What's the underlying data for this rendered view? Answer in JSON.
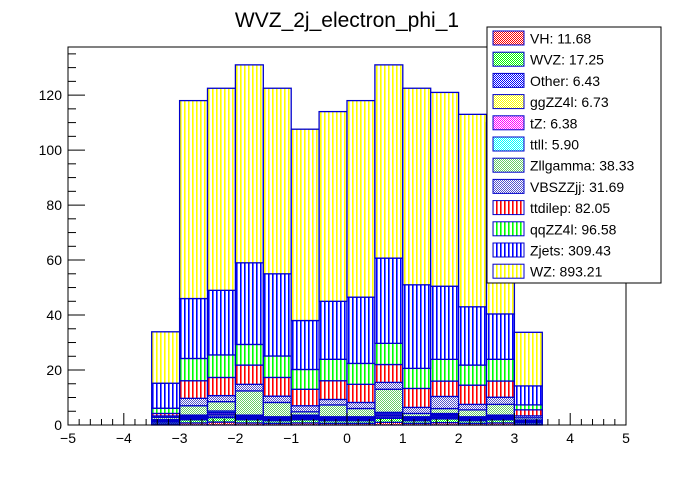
{
  "chart_data": {
    "type": "bar",
    "stacked": true,
    "title": "WVZ_2j_electron_phi_1",
    "xlabel": "",
    "ylabel": "",
    "xlim": [
      -5,
      5
    ],
    "ylim": [
      0,
      137.5
    ],
    "xticks": [
      "-5",
      "-4",
      "-3",
      "-2",
      "-1",
      "0",
      "1",
      "2",
      "3",
      "4",
      "5"
    ],
    "xtick_values": [
      -5,
      -4,
      -3,
      -2,
      -1,
      0,
      1,
      2,
      3,
      4,
      5
    ],
    "yticks": [
      "0",
      "20",
      "40",
      "60",
      "80",
      "100",
      "120"
    ],
    "ytick_values": [
      0,
      20,
      40,
      60,
      80,
      100,
      120
    ],
    "bin_edges": [
      -3.5,
      -3,
      -2.5,
      -2,
      -1.5,
      -1,
      -0.5,
      0,
      0.5,
      1,
      1.5,
      2,
      2.5,
      3,
      3.5
    ],
    "legend_position": "top-right",
    "series": [
      {
        "name": "VH",
        "legend": "VH: 11.68",
        "color": "#ff0000",
        "pattern": "checker",
        "values": [
          0.42,
          0.76,
          1.07,
          0.76,
          0.63,
          0.76,
          0.63,
          0.63,
          0.97,
          0.63,
          0.88,
          0.63,
          0.76,
          0.38
        ]
      },
      {
        "name": "WVZ",
        "legend": "WVZ: 17.25",
        "color": "#00ff00",
        "pattern": "checker",
        "values": [
          0.64,
          1.15,
          1.63,
          1.15,
          0.96,
          1.15,
          0.96,
          0.96,
          1.47,
          0.96,
          1.34,
          0.96,
          1.15,
          0.58
        ]
      },
      {
        "name": "Other",
        "legend": "Other: 6.43",
        "color": "#0000ff",
        "pattern": "checker",
        "values": [
          0.24,
          0.43,
          0.61,
          0.43,
          0.36,
          0.43,
          0.36,
          0.36,
          0.55,
          0.36,
          0.5,
          0.36,
          0.43,
          0.22
        ]
      },
      {
        "name": "ggZZ4l",
        "legend": "ggZZ4l: 6.73",
        "color": "#ffff00",
        "pattern": "checker",
        "values": [
          0.24,
          0.43,
          0.61,
          0.43,
          0.36,
          0.43,
          0.36,
          0.36,
          0.55,
          0.36,
          0.5,
          0.36,
          0.43,
          0.22
        ]
      },
      {
        "name": "tZ",
        "legend": "tZ: 6.38",
        "color": "#ff00ff",
        "pattern": "checker",
        "values": [
          0.24,
          0.43,
          0.61,
          0.43,
          0.36,
          0.43,
          0.36,
          0.36,
          0.55,
          0.36,
          0.5,
          0.36,
          0.43,
          0.22
        ]
      },
      {
        "name": "ttll",
        "legend": "ttll: 5.90",
        "color": "#00ffff",
        "pattern": "checker",
        "values": [
          0.22,
          0.4,
          0.56,
          0.4,
          0.33,
          0.4,
          0.33,
          0.33,
          0.51,
          0.33,
          0.46,
          0.33,
          0.4,
          0.2
        ]
      },
      {
        "name": "Zllgamma",
        "legend": "Zllgamma: 38.33",
        "color": "#66cc66",
        "pattern": "checker",
        "values": [
          0.8,
          3.4,
          3.4,
          8.8,
          5.2,
          1.2,
          4.3,
          3.0,
          8.4,
          1.2,
          1.8,
          2.5,
          3.9,
          0.8
        ]
      },
      {
        "name": "VBSZZjj",
        "legend": "VBSZZjj: 31.69",
        "color": "#5555cc",
        "pattern": "checker",
        "values": [
          0.5,
          2.7,
          2.2,
          2.4,
          2.3,
          2.2,
          2.0,
          2.2,
          2.5,
          2.2,
          4.4,
          2.0,
          2.6,
          0.7
        ]
      },
      {
        "name": "ttdilep",
        "legend": "ttdilep: 82.05",
        "color": "#ff0000",
        "pattern": "vertical",
        "values": [
          0.9,
          6.4,
          6.6,
          7.0,
          6.8,
          6.0,
          6.8,
          6.6,
          6.5,
          6.9,
          5.6,
          7.0,
          5.9,
          2.2
        ]
      },
      {
        "name": "qqZZ4l",
        "legend": "qqZZ4l: 96.58",
        "color": "#00ff00",
        "pattern": "vertical",
        "values": [
          1.9,
          8.1,
          8.2,
          7.5,
          7.8,
          7.2,
          7.8,
          7.6,
          7.7,
          7.3,
          7.9,
          7.3,
          7.9,
          1.8
        ]
      },
      {
        "name": "Zjets",
        "legend": "Zjets: 309.43",
        "color": "#0000ff",
        "pattern": "vertical",
        "values": [
          9.1,
          21.8,
          23.5,
          29.7,
          29.9,
          17.8,
          21.1,
          24.1,
          31.0,
          30.4,
          26.6,
          21.2,
          16.5,
          6.9
        ]
      },
      {
        "name": "WZ",
        "legend": "WZ: 893.21",
        "color": "#ffff00",
        "pattern": "vertical",
        "values": [
          18.7,
          72,
          73.5,
          72,
          67.5,
          69.6,
          69,
          71.5,
          70.3,
          71.5,
          70.5,
          70,
          69.6,
          19.5
        ]
      }
    ],
    "outline_color": "#0000cc"
  }
}
